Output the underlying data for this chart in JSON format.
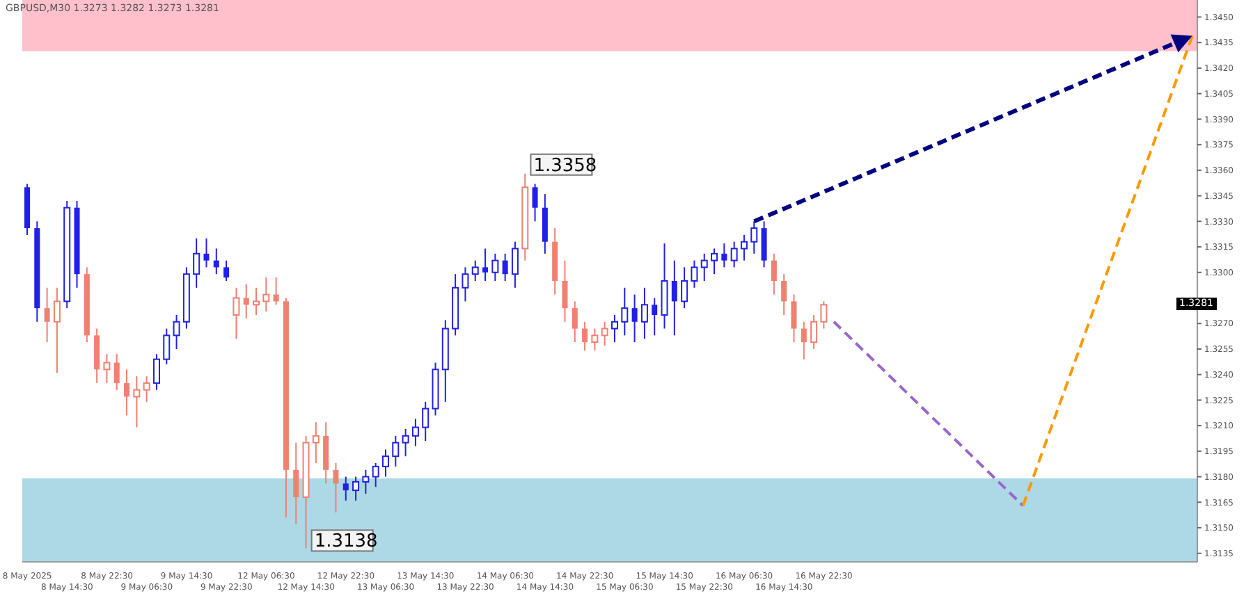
{
  "chart_data": {
    "type": "candlestick",
    "title": "GBPUSD,M30  1.3273 1.3282 1.3273 1.3281",
    "categories": [
      "8 May 2025",
      null,
      null,
      null,
      "8 May 14:30",
      null,
      null,
      null,
      "8 May 22:30",
      null,
      null,
      null,
      "9 May 06:30",
      null,
      null,
      null,
      "9 May 14:30",
      null,
      null,
      null,
      "9 May 22:30",
      null,
      null,
      null,
      "12 May 06:30",
      null,
      null,
      null,
      "12 May 14:30",
      null,
      null,
      null,
      "12 May 22:30",
      null,
      null,
      null,
      "13 May 06:30",
      null,
      null,
      null,
      "13 May 14:30",
      null,
      null,
      null,
      "13 May 22:30",
      null,
      null,
      null,
      "14 May 06:30",
      null,
      null,
      null,
      "14 May 14:30",
      null,
      null,
      null,
      "14 May 22:30",
      null,
      null,
      null,
      "15 May 06:30",
      null,
      null,
      null,
      "15 May 14:30",
      null,
      null,
      null,
      "15 May 22:30",
      null,
      null,
      null,
      "16 May 06:30",
      null,
      null,
      null,
      "16 May 14:30",
      null,
      null,
      null,
      "16 May 22:30",
      null,
      null,
      null,
      null,
      null,
      null,
      null,
      null,
      null,
      null,
      null,
      null,
      null,
      null,
      null,
      null,
      null,
      null,
      null,
      null,
      null,
      null,
      null,
      null,
      null,
      null,
      null,
      null,
      null,
      null,
      null,
      null,
      null,
      null,
      null,
      null,
      null
    ],
    "ohlc": [
      [
        1.335,
        1.3352,
        1.3322,
        1.3326
      ],
      [
        1.3326,
        1.333,
        1.3271,
        1.3279
      ],
      [
        1.3279,
        1.3291,
        1.3259,
        1.3271
      ],
      [
        1.3271,
        1.3291,
        1.3241,
        1.3283
      ],
      [
        1.3283,
        1.3342,
        1.3279,
        1.3338
      ],
      [
        1.3338,
        1.3342,
        1.3291,
        1.3299
      ],
      [
        1.3299,
        1.3303,
        1.3259,
        1.3263
      ],
      [
        1.3263,
        1.3267,
        1.3235,
        1.3243
      ],
      [
        1.3243,
        1.3252,
        1.3235,
        1.3247
      ],
      [
        1.3247,
        1.3252,
        1.3231,
        1.3235
      ],
      [
        1.3235,
        1.3243,
        1.3216,
        1.3227
      ],
      [
        1.3227,
        1.3239,
        1.3209,
        1.3231
      ],
      [
        1.3231,
        1.3239,
        1.3224,
        1.3235
      ],
      [
        1.3235,
        1.3252,
        1.3231,
        1.3249
      ],
      [
        1.3249,
        1.3267,
        1.3246,
        1.3263
      ],
      [
        1.3263,
        1.3275,
        1.3255,
        1.3271
      ],
      [
        1.3271,
        1.3303,
        1.3267,
        1.3299
      ],
      [
        1.3299,
        1.332,
        1.3291,
        1.3311
      ],
      [
        1.3311,
        1.332,
        1.3303,
        1.3307
      ],
      [
        1.3307,
        1.3314,
        1.3299,
        1.3303
      ],
      [
        1.3303,
        1.3307,
        1.3295,
        1.3297
      ],
      [
        1.3275,
        1.3291,
        1.3261,
        1.3285
      ],
      [
        1.3285,
        1.3293,
        1.3273,
        1.3281
      ],
      [
        1.3281,
        1.3291,
        1.3275,
        1.3283
      ],
      [
        1.3283,
        1.3297,
        1.3277,
        1.3287
      ],
      [
        1.3287,
        1.3297,
        1.3281,
        1.3283
      ],
      [
        1.3283,
        1.3285,
        1.3156,
        1.3184
      ],
      [
        1.3184,
        1.32,
        1.3152,
        1.3168
      ],
      [
        1.3168,
        1.3204,
        1.3138,
        1.32
      ],
      [
        1.32,
        1.3212,
        1.3188,
        1.3204
      ],
      [
        1.3204,
        1.3212,
        1.3176,
        1.3184
      ],
      [
        1.3184,
        1.3188,
        1.3159,
        1.3176
      ],
      [
        1.3176,
        1.318,
        1.3166,
        1.3172
      ],
      [
        1.3172,
        1.318,
        1.3166,
        1.3177
      ],
      [
        1.3177,
        1.3184,
        1.317,
        1.318
      ],
      [
        1.318,
        1.3188,
        1.3174,
        1.3186
      ],
      [
        1.3186,
        1.3196,
        1.318,
        1.3192
      ],
      [
        1.3192,
        1.3204,
        1.3186,
        1.32
      ],
      [
        1.32,
        1.3208,
        1.3192,
        1.3204
      ],
      [
        1.3204,
        1.3214,
        1.3198,
        1.3209
      ],
      [
        1.3209,
        1.3224,
        1.3201,
        1.322
      ],
      [
        1.322,
        1.3247,
        1.3216,
        1.3243
      ],
      [
        1.3243,
        1.3272,
        1.3224,
        1.3267
      ],
      [
        1.3267,
        1.3299,
        1.3263,
        1.3291
      ],
      [
        1.3291,
        1.3303,
        1.3283,
        1.3299
      ],
      [
        1.3299,
        1.3307,
        1.3295,
        1.3303
      ],
      [
        1.3303,
        1.3314,
        1.3295,
        1.33
      ],
      [
        1.33,
        1.3311,
        1.3295,
        1.3307
      ],
      [
        1.3307,
        1.3311,
        1.3295,
        1.3299
      ],
      [
        1.3299,
        1.3318,
        1.3291,
        1.3314
      ],
      [
        1.3314,
        1.3358,
        1.3307,
        1.335
      ],
      [
        1.335,
        1.3352,
        1.333,
        1.3338
      ],
      [
        1.3338,
        1.3346,
        1.3311,
        1.3318
      ],
      [
        1.3318,
        1.3326,
        1.3287,
        1.3295
      ],
      [
        1.3295,
        1.3307,
        1.3271,
        1.3279
      ],
      [
        1.3279,
        1.3283,
        1.3259,
        1.3267
      ],
      [
        1.3267,
        1.3271,
        1.3254,
        1.3259
      ],
      [
        1.3259,
        1.3267,
        1.3254,
        1.3263
      ],
      [
        1.3263,
        1.3271,
        1.3257,
        1.3267
      ],
      [
        1.3267,
        1.3275,
        1.3259,
        1.3271
      ],
      [
        1.3271,
        1.3291,
        1.3263,
        1.3279
      ],
      [
        1.3279,
        1.3287,
        1.3259,
        1.3271
      ],
      [
        1.3271,
        1.3291,
        1.3261,
        1.3281
      ],
      [
        1.3281,
        1.3285,
        1.3263,
        1.3275
      ],
      [
        1.3275,
        1.3317,
        1.3267,
        1.3295
      ],
      [
        1.3295,
        1.3307,
        1.3263,
        1.3283
      ],
      [
        1.3283,
        1.3303,
        1.3279,
        1.3295
      ],
      [
        1.3295,
        1.3307,
        1.3291,
        1.3303
      ],
      [
        1.3303,
        1.3311,
        1.3295,
        1.3307
      ],
      [
        1.3307,
        1.3314,
        1.3299,
        1.3311
      ],
      [
        1.3311,
        1.3317,
        1.3303,
        1.3307
      ],
      [
        1.3307,
        1.3318,
        1.3303,
        1.3314
      ],
      [
        1.3314,
        1.3322,
        1.3307,
        1.3318
      ],
      [
        1.3318,
        1.333,
        1.3311,
        1.3326
      ],
      [
        1.3326,
        1.333,
        1.3303,
        1.3307
      ],
      [
        1.3307,
        1.3311,
        1.3287,
        1.3295
      ],
      [
        1.3295,
        1.3299,
        1.3275,
        1.3283
      ],
      [
        1.3283,
        1.3287,
        1.3259,
        1.3267
      ],
      [
        1.3267,
        1.3271,
        1.3249,
        1.3259
      ],
      [
        1.3259,
        1.3275,
        1.3255,
        1.3271
      ],
      [
        1.3271,
        1.3283,
        1.3267,
        1.3281
      ],
      null,
      null,
      null,
      null,
      null,
      null,
      null,
      null,
      null,
      null,
      null,
      null,
      null,
      null,
      null,
      null,
      null,
      null,
      null,
      null,
      null,
      null,
      null,
      null,
      null,
      null,
      null,
      null,
      null,
      null,
      null,
      null,
      null,
      null,
      null,
      null,
      null
    ],
    "colors": [
      "#2020e8",
      "#2020e8",
      "#f08070",
      "#f08070",
      "#2020e8",
      "#2020e8",
      "#f08070",
      "#f08070",
      "#f08070",
      "#f08070",
      "#f08070",
      "#f08070",
      "#f08070",
      "#2020e8",
      "#2020e8",
      "#2020e8",
      "#2020e8",
      "#2020e8",
      "#2020e8",
      "#2020e8",
      "#2020e8",
      "#f08070",
      "#f08070",
      "#f08070",
      "#f08070",
      "#f08070",
      "#f08070",
      "#f08070",
      "#f08070",
      "#f08070",
      "#f08070",
      "#f08070",
      "#2020e8",
      "#2020e8",
      "#2020e8",
      "#2020e8",
      "#2020e8",
      "#2020e8",
      "#2020e8",
      "#2020e8",
      "#2020e8",
      "#2020e8",
      "#2020e8",
      "#2020e8",
      "#2020e8",
      "#2020e8",
      "#2020e8",
      "#2020e8",
      "#2020e8",
      "#2020e8",
      "#f08070",
      "#2020e8",
      "#2020e8",
      "#f08070",
      "#f08070",
      "#f08070",
      "#f08070",
      "#f08070",
      "#f08070",
      "#2020e8",
      "#2020e8",
      "#2020e8",
      "#2020e8",
      "#2020e8",
      "#2020e8",
      "#2020e8",
      "#2020e8",
      "#2020e8",
      "#2020e8",
      "#2020e8",
      "#2020e8",
      "#2020e8",
      "#2020e8",
      "#2020e8",
      "#2020e8",
      "#f08070",
      "#f08070",
      "#f08070",
      "#f08070",
      "#f08070",
      "#f08070",
      null,
      null,
      null,
      null,
      null,
      null,
      null,
      null,
      null,
      null,
      null,
      null,
      null,
      null,
      null,
      null,
      null,
      null,
      null,
      null,
      null,
      null,
      null,
      null,
      null,
      null,
      null,
      null,
      null,
      null,
      null,
      null,
      null,
      null,
      null,
      null,
      null
    ],
    "series": [
      {
        "type": "line",
        "color": "#9966cc",
        "line_style": "dashed",
        "values": [
          null,
          null,
          null,
          null,
          null,
          null,
          null,
          null,
          null,
          null,
          null,
          null,
          null,
          null,
          null,
          null,
          null,
          null,
          null,
          null,
          null,
          null,
          null,
          null,
          null,
          null,
          null,
          null,
          null,
          null,
          null,
          null,
          null,
          null,
          null,
          null,
          null,
          null,
          null,
          null,
          null,
          null,
          null,
          null,
          null,
          null,
          null,
          null,
          null,
          null,
          null,
          null,
          null,
          null,
          null,
          null,
          null,
          null,
          null,
          null,
          null,
          null,
          null,
          null,
          null,
          null,
          null,
          null,
          null,
          null,
          null,
          null,
          null,
          null,
          null,
          null,
          null,
          null,
          null,
          null,
          null,
          1.3271,
          null,
          null,
          null,
          null,
          null,
          null,
          null,
          null,
          null,
          null,
          null,
          null,
          null,
          null,
          null,
          null,
          null,
          null,
          1.3163,
          null,
          null,
          null,
          null,
          null,
          null,
          null,
          null,
          null,
          null,
          null,
          null,
          null,
          null,
          null,
          null,
          null
        ]
      },
      {
        "type": "line",
        "color": "#ff9900",
        "line_style": "dashed",
        "values": [
          null,
          null,
          null,
          null,
          null,
          null,
          null,
          null,
          null,
          null,
          null,
          null,
          null,
          null,
          null,
          null,
          null,
          null,
          null,
          null,
          null,
          null,
          null,
          null,
          null,
          null,
          null,
          null,
          null,
          null,
          null,
          null,
          null,
          null,
          null,
          null,
          null,
          null,
          null,
          null,
          null,
          null,
          null,
          null,
          null,
          null,
          null,
          null,
          null,
          null,
          null,
          null,
          null,
          null,
          null,
          null,
          null,
          null,
          null,
          null,
          null,
          null,
          null,
          null,
          null,
          null,
          null,
          null,
          null,
          null,
          null,
          null,
          null,
          null,
          null,
          null,
          null,
          null,
          null,
          null,
          null,
          null,
          null,
          null,
          null,
          null,
          null,
          null,
          null,
          null,
          null,
          null,
          null,
          null,
          null,
          null,
          null,
          null,
          null,
          null,
          1.3163,
          null,
          null,
          null,
          null,
          null,
          null,
          null,
          null,
          null,
          null,
          null,
          null,
          null,
          null,
          null,
          null,
          1.3439
        ]
      }
    ],
    "ylim": [
      1.313,
      1.346
    ],
    "yticks": [
      {
        "value": 1.3135,
        "label": "1.3135"
      },
      {
        "value": 1.315,
        "label": "1.3150"
      },
      {
        "value": 1.3165,
        "label": "1.3165"
      },
      {
        "value": 1.318,
        "label": "1.3180"
      },
      {
        "value": 1.3195,
        "label": "1.3195"
      },
      {
        "value": 1.321,
        "label": "1.3210"
      },
      {
        "value": 1.3225,
        "label": "1.3225"
      },
      {
        "value": 1.324,
        "label": "1.3240"
      },
      {
        "value": 1.3255,
        "label": "1.3255"
      },
      {
        "value": 1.327,
        "label": "1.3270"
      },
      {
        "value": 1.33,
        "label": "1.3300"
      },
      {
        "value": 1.3315,
        "label": "1.3315"
      },
      {
        "value": 1.333,
        "label": "1.3330"
      },
      {
        "value": 1.3345,
        "label": "1.3345"
      },
      {
        "value": 1.336,
        "label": "1.3360"
      },
      {
        "value": 1.3375,
        "label": "1.3375"
      },
      {
        "value": 1.339,
        "label": "1.3390"
      },
      {
        "value": 1.3405,
        "label": "1.3405"
      },
      {
        "value": 1.342,
        "label": "1.3420"
      },
      {
        "value": 1.3435,
        "label": "1.3435"
      },
      {
        "value": 1.345,
        "label": "1.3450"
      }
    ],
    "bands": [
      {
        "axis": "y",
        "from": 1.343,
        "to": 1.346,
        "color": "#ffc0cb"
      },
      {
        "axis": "y",
        "from": 1.313,
        "to": 1.3179,
        "color": "#add8e6"
      }
    ],
    "annotations": [
      "1.3358",
      "1.3138",
      "1.3281"
    ]
  }
}
